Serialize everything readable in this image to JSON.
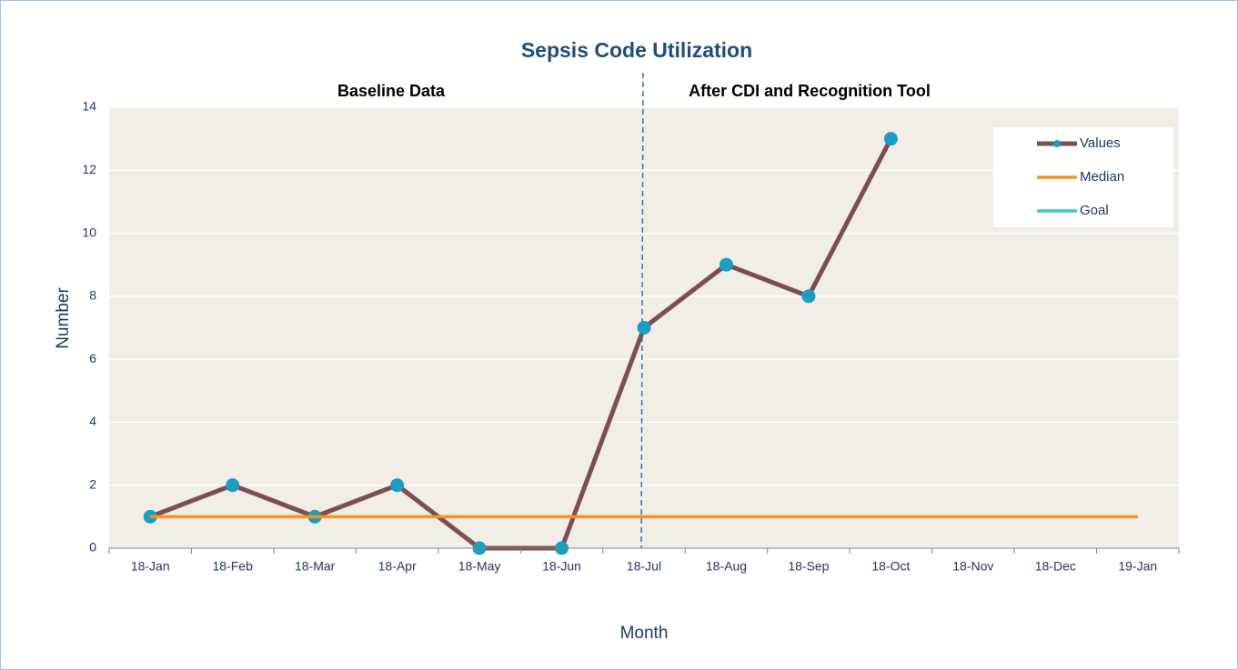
{
  "chart_data": {
    "type": "line",
    "title": "Sepsis Code Utilization",
    "annotations": [
      "Baseline Data",
      "After CDI and Recognition Tool"
    ],
    "x_label": "Month",
    "y_label": "Number",
    "categories": [
      "18-Jan",
      "18-Feb",
      "18-Mar",
      "18-Apr",
      "18-May",
      "18-Jun",
      "18-Jul",
      "18-Aug",
      "18-Sep",
      "18-Oct",
      "18-Nov",
      "18-Dec",
      "19-Jan"
    ],
    "series": [
      {
        "name": "Values",
        "color": "#7d4e51",
        "marker_color": "#1a9ec2",
        "markers": true,
        "values": [
          1,
          2,
          1,
          2,
          0,
          0,
          7,
          9,
          8,
          13,
          null,
          null,
          null
        ]
      },
      {
        "name": "Median",
        "color": "#f7941d",
        "markers": false,
        "values": [
          1,
          1,
          1,
          1,
          1,
          1,
          1,
          1,
          1,
          1,
          1,
          1,
          1
        ]
      },
      {
        "name": "Goal",
        "color": "#3cc6d0",
        "markers": false,
        "values": [
          null,
          null,
          null,
          null,
          null,
          null,
          null,
          null,
          null,
          null,
          null,
          null,
          null
        ]
      }
    ],
    "ylim": [
      0,
      14
    ],
    "yticks": [
      0,
      2,
      4,
      6,
      8,
      10,
      12,
      14
    ],
    "grid": true,
    "legend": "upper right"
  }
}
